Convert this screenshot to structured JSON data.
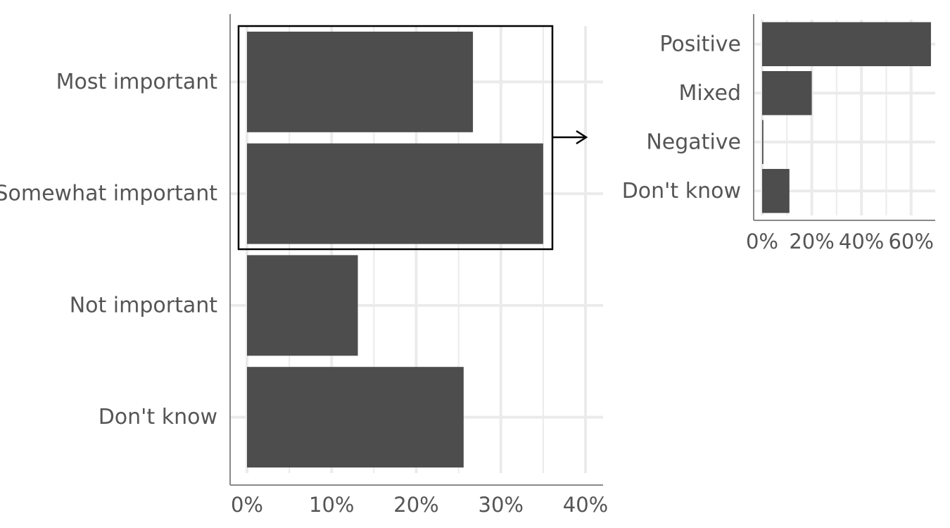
{
  "chart_data": [
    {
      "type": "bar",
      "orientation": "horizontal",
      "categories": [
        "Most important",
        "Somewhat important",
        "Not important",
        "Don't know"
      ],
      "values": [
        26.7,
        35.0,
        13.1,
        25.6
      ],
      "xlim": [
        0,
        40
      ],
      "x_ticks": [
        "0%",
        "10%",
        "20%",
        "30%",
        "40%"
      ],
      "grid": true,
      "bar_color": "#4d4d4d",
      "highlight": {
        "categories": [
          "Most important",
          "Somewhat important"
        ],
        "arrow_to": "breakdown chart"
      }
    },
    {
      "type": "bar",
      "orientation": "horizontal",
      "categories": [
        "Positive",
        "Mixed",
        "Negative",
        "Don't know"
      ],
      "values": [
        68,
        20,
        0.5,
        11
      ],
      "xlim": [
        0,
        70
      ],
      "x_ticks": [
        "0%",
        "20%",
        "40%",
        "60%"
      ],
      "grid": true,
      "bar_color": "#4d4d4d"
    }
  ]
}
